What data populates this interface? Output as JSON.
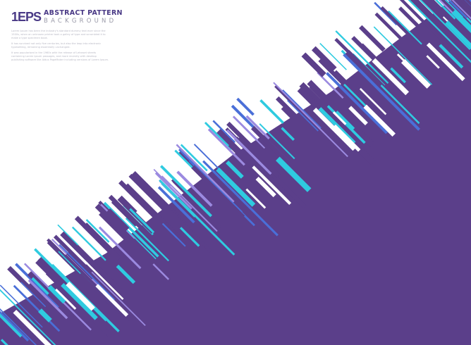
{
  "logo": {
    "badge": "1EPS"
  },
  "title": "ABSTRACT PATTERN",
  "subtitle": "BACKGROUND",
  "paragraphs": [
    "Lorem Ipsum has been the industry's standard dummy text ever since the 1500s, when an unknown printer took a galley of type and scrambled it to make a type specimen book.",
    "It has survived not only five centuries, but also the leap into electronic typesetting, remaining essentially unchanged.",
    "It was popularised in the 1960s with the release of Letraset sheets containing Lorem Ipsum passages, and more recently with desktop publishing software like Aldus PageMaker including versions of Lorem Ipsum."
  ],
  "colors": {
    "purple": "#5b3f8a",
    "cyan": "#2fcbe0",
    "blue": "#4a6fd8",
    "lavender": "#9b8ae0",
    "title": "#4a3a86"
  }
}
